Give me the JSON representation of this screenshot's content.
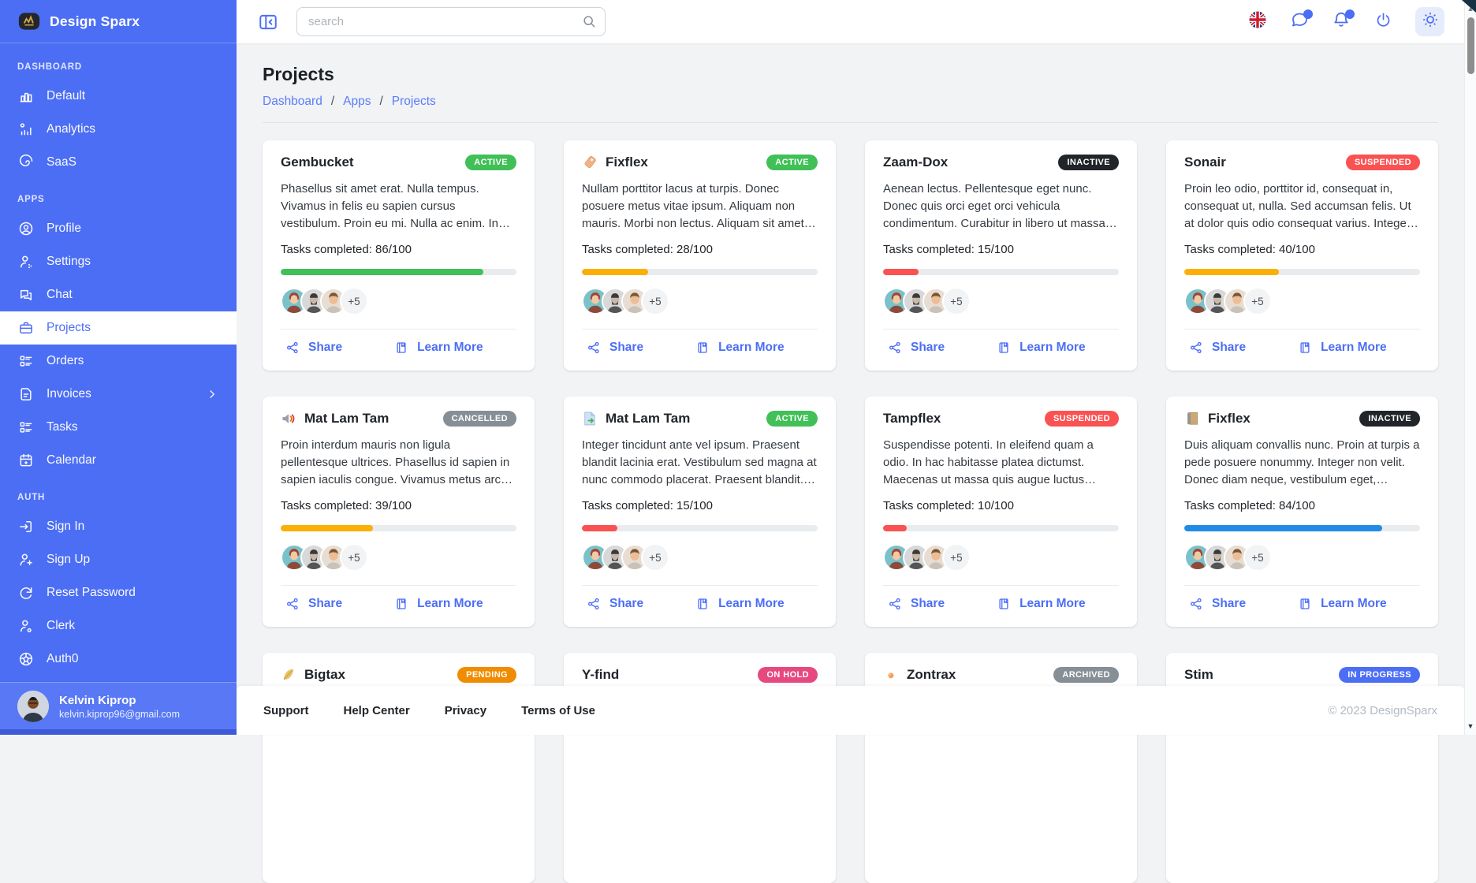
{
  "sidebar": {
    "brand": "Design Sparx",
    "sections": [
      {
        "label": "DASHBOARD",
        "items": [
          {
            "label": "Default",
            "icon": "chart-bar-icon"
          },
          {
            "label": "Analytics",
            "icon": "chart-dots-icon"
          },
          {
            "label": "SaaS",
            "icon": "spiral-icon"
          }
        ]
      },
      {
        "label": "APPS",
        "items": [
          {
            "label": "Profile",
            "icon": "user-circle-icon"
          },
          {
            "label": "Settings",
            "icon": "user-cog-icon"
          },
          {
            "label": "Chat",
            "icon": "chat-icon"
          },
          {
            "label": "Projects",
            "icon": "briefcase-icon",
            "active": true
          },
          {
            "label": "Orders",
            "icon": "list-details-icon"
          },
          {
            "label": "Invoices",
            "icon": "invoice-icon",
            "has_submenu": true
          },
          {
            "label": "Tasks",
            "icon": "list-check-icon"
          },
          {
            "label": "Calendar",
            "icon": "calendar-icon"
          }
        ]
      },
      {
        "label": "AUTH",
        "items": [
          {
            "label": "Sign In",
            "icon": "login-icon"
          },
          {
            "label": "Sign Up",
            "icon": "user-plus-icon"
          },
          {
            "label": "Reset Password",
            "icon": "rotate-icon"
          },
          {
            "label": "Clerk",
            "icon": "user-dot-icon"
          },
          {
            "label": "Auth0",
            "icon": "auth0-icon"
          }
        ]
      }
    ],
    "user": {
      "name": "Kelvin Kiprop",
      "email": "kelvin.kiprop96@gmail.com"
    }
  },
  "topbar": {
    "search_placeholder": "search",
    "icons": [
      {
        "name": "uk-flag-icon"
      },
      {
        "name": "message-icon",
        "badge": true
      },
      {
        "name": "bell-icon",
        "badge": true
      },
      {
        "name": "power-icon"
      },
      {
        "name": "sun-icon",
        "boxed": true
      }
    ]
  },
  "page": {
    "title": "Projects",
    "breadcrumb": [
      "Dashboard",
      "Apps",
      "Projects"
    ],
    "breadcrumb_separator": "/"
  },
  "card_actions": {
    "share": "Share",
    "learn_more": "Learn More"
  },
  "avatars_more": "+5",
  "cards": [
    {
      "title": "Gembucket",
      "icon": null,
      "status": "ACTIVE",
      "status_color": "#40c057",
      "description": "Phasellus sit amet erat. Nulla tempus. Vivamus in felis eu sapien cursus vestibulum. Proin eu mi. Nulla ac enim. In tempor, turpis nec euismod...",
      "tasks_label": "Tasks completed: 86/100",
      "progress": 86,
      "progress_color": "#40c057",
      "avatars": [
        "avatar-1",
        "avatar-2",
        "avatar-3"
      ],
      "avatars_more": "+5",
      "show_actions": true
    },
    {
      "title": "Fixflex",
      "icon": "tag-icon",
      "status": "ACTIVE",
      "status_color": "#40c057",
      "description": "Nullam porttitor lacus at turpis. Donec posuere metus vitae ipsum. Aliquam non mauris. Morbi non lectus. Aliquam sit amet diam in magna...",
      "tasks_label": "Tasks completed: 28/100",
      "progress": 28,
      "progress_color": "#fab005",
      "avatars": [
        "avatar-1",
        "avatar-2",
        "avatar-3"
      ],
      "avatars_more": "+5",
      "show_actions": true
    },
    {
      "title": "Zaam-Dox",
      "icon": null,
      "status": "INACTIVE",
      "status_color": "#212529",
      "description": "Aenean lectus. Pellentesque eget nunc. Donec quis orci eget orci vehicula condimentum. Curabitur in libero ut massa volutpat convallis....",
      "tasks_label": "Tasks completed: 15/100",
      "progress": 15,
      "progress_color": "#fa5252",
      "avatars": [
        "avatar-1",
        "avatar-2",
        "avatar-3"
      ],
      "avatars_more": "+5",
      "show_actions": true
    },
    {
      "title": "Sonair",
      "icon": null,
      "status": "SUSPENDED",
      "status_color": "#fa5252",
      "description": "Proin leo odio, porttitor id, consequat in, consequat ut, nulla. Sed accumsan felis. Ut at dolor quis odio consequat varius. Integer ac le...",
      "tasks_label": "Tasks completed: 40/100",
      "progress": 40,
      "progress_color": "#fab005",
      "avatars": [
        "avatar-1",
        "avatar-2",
        "avatar-3"
      ],
      "avatars_more": "+5",
      "show_actions": true
    },
    {
      "title": "Mat Lam Tam",
      "icon": "speaker-icon",
      "status": "CANCELLED",
      "status_color": "#868e96",
      "description": "Proin interdum mauris non ligula pellentesque ultrices. Phasellus id sapien in sapien iaculis congue. Vivamus metus arcu, adipiscing...",
      "tasks_label": "Tasks completed: 39/100",
      "progress": 39,
      "progress_color": "#fab005",
      "avatars": [
        "avatar-1",
        "avatar-2",
        "avatar-3"
      ],
      "avatars_more": "+5",
      "show_actions": true
    },
    {
      "title": "Mat Lam Tam",
      "icon": "document-icon",
      "status": "ACTIVE",
      "status_color": "#40c057",
      "description": "Integer tincidunt ante vel ipsum. Praesent blandit lacinia erat. Vestibulum sed magna at nunc commodo placerat. Praesent blandit. Na...",
      "tasks_label": "Tasks completed: 15/100",
      "progress": 15,
      "progress_color": "#fa5252",
      "avatars": [
        "avatar-1",
        "avatar-2",
        "avatar-3"
      ],
      "avatars_more": "+5",
      "show_actions": true
    },
    {
      "title": "Tampflex",
      "icon": null,
      "status": "SUSPENDED",
      "status_color": "#fa5252",
      "description": "Suspendisse potenti. In eleifend quam a odio. In hac habitasse platea dictumst. Maecenas ut massa quis augue luctus tincidunt. Nulla mollis...",
      "tasks_label": "Tasks completed: 10/100",
      "progress": 10,
      "progress_color": "#fa5252",
      "avatars": [
        "avatar-1",
        "avatar-2",
        "avatar-3"
      ],
      "avatars_more": "+5",
      "show_actions": true
    },
    {
      "title": "Fixflex",
      "icon": "book-color-icon",
      "status": "INACTIVE",
      "status_color": "#212529",
      "description": "Duis aliquam convallis nunc. Proin at turpis a pede posuere nonummy. Integer non velit. Donec diam neque, vestibulum eget, vulputate...",
      "tasks_label": "Tasks completed: 84/100",
      "progress": 84,
      "progress_color": "#228be6",
      "avatars": [
        "avatar-1",
        "avatar-2",
        "avatar-3"
      ],
      "avatars_more": "+5",
      "show_actions": true
    },
    {
      "title": "Bigtax",
      "icon": "feather-icon",
      "status": "PENDING",
      "status_color": "#f08c00"
    },
    {
      "title": "Y-find",
      "icon": null,
      "status": "ON HOLD",
      "status_color": "#e64980"
    },
    {
      "title": "Zontrax",
      "icon": "dot-icon",
      "status": "ARCHIVED",
      "status_color": "#868e96"
    },
    {
      "title": "Stim",
      "icon": null,
      "status": "IN PROGRESS",
      "status_color": "#4c6ef5"
    }
  ],
  "footer": {
    "links": [
      "Support",
      "Help Center",
      "Privacy",
      "Terms of Use"
    ],
    "copyright": "© 2023 DesignSparx"
  }
}
